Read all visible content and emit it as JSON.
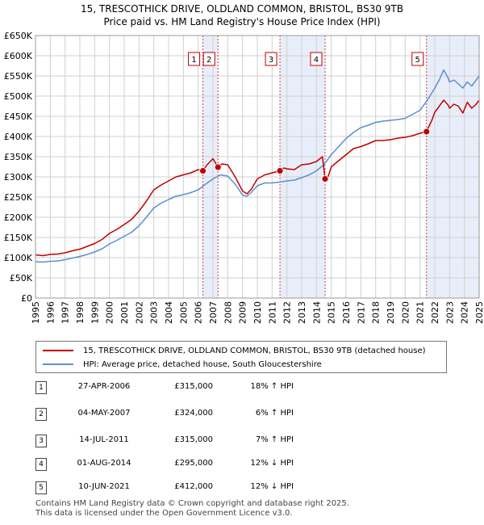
{
  "title_line1": "15, TRESCOTHICK DRIVE, OLDLAND COMMON, BRISTOL, BS30 9TB",
  "title_line2": "Price paid vs. HM Land Registry's House Price Index (HPI)",
  "colors": {
    "property": "#c00000",
    "hpi": "#5b8fd0",
    "shade": "#e8eef9",
    "grid": "#d0d0d0"
  },
  "chart_data": {
    "type": "line",
    "xlim": [
      1995,
      2025
    ],
    "ylim": [
      0,
      650000
    ],
    "yticks": [
      {
        "v": 0,
        "label": "£0"
      },
      {
        "v": 50000,
        "label": "£50K"
      },
      {
        "v": 100000,
        "label": "£100K"
      },
      {
        "v": 150000,
        "label": "£150K"
      },
      {
        "v": 200000,
        "label": "£200K"
      },
      {
        "v": 250000,
        "label": "£250K"
      },
      {
        "v": 300000,
        "label": "£300K"
      },
      {
        "v": 350000,
        "label": "£350K"
      },
      {
        "v": 400000,
        "label": "£400K"
      },
      {
        "v": 450000,
        "label": "£450K"
      },
      {
        "v": 500000,
        "label": "£500K"
      },
      {
        "v": 550000,
        "label": "£550K"
      },
      {
        "v": 600000,
        "label": "£600K"
      },
      {
        "v": 650000,
        "label": "£650K"
      }
    ],
    "xticks": [
      "1995",
      "1996",
      "1997",
      "1998",
      "1999",
      "2000",
      "2001",
      "2002",
      "2003",
      "2004",
      "2005",
      "2006",
      "2007",
      "2008",
      "2009",
      "2010",
      "2011",
      "2012",
      "2013",
      "2014",
      "2015",
      "2016",
      "2017",
      "2018",
      "2019",
      "2020",
      "2021",
      "2022",
      "2023",
      "2024",
      "2025"
    ],
    "shaded_periods": [
      [
        2006.32,
        2007.34
      ],
      [
        2011.53,
        2014.58
      ],
      [
        2021.44,
        2025.0
      ]
    ],
    "series": [
      {
        "name": "15, TRESCOTHICK DRIVE, OLDLAND COMMON, BRISTOL, BS30 9TB (detached house)",
        "x": [
          1995.0,
          1995.5,
          1996.0,
          1996.5,
          1997.0,
          1997.5,
          1998.0,
          1998.5,
          1999.0,
          1999.5,
          2000.0,
          2000.5,
          2001.0,
          2001.5,
          2002.0,
          2002.5,
          2003.0,
          2003.5,
          2004.0,
          2004.5,
          2005.0,
          2005.5,
          2006.0,
          2006.32,
          2006.6,
          2007.0,
          2007.34,
          2007.6,
          2008.0,
          2008.5,
          2009.0,
          2009.3,
          2009.6,
          2010.0,
          2010.5,
          2011.0,
          2011.53,
          2011.8,
          2012.0,
          2012.5,
          2013.0,
          2013.5,
          2014.0,
          2014.4,
          2014.58,
          2014.8,
          2015.0,
          2015.5,
          2016.0,
          2016.5,
          2017.0,
          2017.5,
          2018.0,
          2018.5,
          2019.0,
          2019.5,
          2020.0,
          2020.5,
          2021.0,
          2021.44,
          2021.8,
          2022.0,
          2022.3,
          2022.6,
          2022.9,
          2023.0,
          2023.3,
          2023.6,
          2023.9,
          2024.2,
          2024.5,
          2024.8,
          2025.0
        ],
        "y": [
          107000,
          105000,
          108000,
          109000,
          112000,
          117000,
          121000,
          128000,
          135000,
          145000,
          160000,
          170000,
          182000,
          195000,
          215000,
          240000,
          268000,
          280000,
          290000,
          300000,
          305000,
          310000,
          318000,
          315000,
          330000,
          345000,
          324000,
          332000,
          330000,
          300000,
          265000,
          258000,
          270000,
          295000,
          305000,
          310000,
          315000,
          322000,
          320000,
          318000,
          330000,
          332000,
          338000,
          350000,
          295000,
          302000,
          325000,
          340000,
          355000,
          370000,
          375000,
          382000,
          390000,
          390000,
          392000,
          396000,
          398000,
          402000,
          408000,
          412000,
          440000,
          460000,
          475000,
          490000,
          478000,
          470000,
          480000,
          475000,
          458000,
          485000,
          470000,
          480000,
          490000
        ]
      },
      {
        "name": "HPI: Average price, detached house, South Gloucestershire",
        "x": [
          1995.0,
          1995.5,
          1996.0,
          1996.5,
          1997.0,
          1997.5,
          1998.0,
          1998.5,
          1999.0,
          1999.5,
          2000.0,
          2000.5,
          2001.0,
          2001.5,
          2002.0,
          2002.5,
          2003.0,
          2003.5,
          2004.0,
          2004.5,
          2005.0,
          2005.5,
          2006.0,
          2006.5,
          2007.0,
          2007.5,
          2008.0,
          2008.5,
          2009.0,
          2009.3,
          2009.6,
          2010.0,
          2010.5,
          2011.0,
          2011.5,
          2012.0,
          2012.5,
          2013.0,
          2013.5,
          2014.0,
          2014.5,
          2015.0,
          2015.5,
          2016.0,
          2016.5,
          2017.0,
          2017.5,
          2018.0,
          2018.5,
          2019.0,
          2019.5,
          2020.0,
          2020.5,
          2021.0,
          2021.5,
          2022.0,
          2022.3,
          2022.6,
          2022.9,
          2023.0,
          2023.3,
          2023.6,
          2023.9,
          2024.2,
          2024.5,
          2024.8,
          2025.0
        ],
        "y": [
          90000,
          89000,
          91000,
          92000,
          95000,
          99000,
          103000,
          108000,
          114000,
          122000,
          134000,
          143000,
          153000,
          163000,
          179000,
          200000,
          223000,
          235000,
          244000,
          252000,
          256000,
          261000,
          268000,
          282000,
          295000,
          305000,
          302000,
          282000,
          255000,
          252000,
          262000,
          278000,
          285000,
          285000,
          287000,
          290000,
          292000,
          298000,
          305000,
          315000,
          330000,
          355000,
          375000,
          395000,
          410000,
          422000,
          428000,
          435000,
          438000,
          440000,
          442000,
          445000,
          455000,
          465000,
          490000,
          520000,
          540000,
          565000,
          545000,
          535000,
          540000,
          530000,
          520000,
          535000,
          525000,
          540000,
          550000
        ]
      }
    ],
    "transactions": [
      {
        "num": "1",
        "x": 2006.32,
        "y": 315000,
        "date": "27-APR-2006",
        "price": "£315,000",
        "hpi": "18% ↑ HPI"
      },
      {
        "num": "2",
        "x": 2007.34,
        "y": 324000,
        "date": "04-MAY-2007",
        "price": "£324,000",
        "hpi": "6% ↑ HPI"
      },
      {
        "num": "3",
        "x": 2011.53,
        "y": 315000,
        "date": "14-JUL-2011",
        "price": "£315,000",
        "hpi": "7% ↑ HPI"
      },
      {
        "num": "4",
        "x": 2014.58,
        "y": 295000,
        "date": "01-AUG-2014",
        "price": "£295,000",
        "hpi": "12% ↓ HPI"
      },
      {
        "num": "5",
        "x": 2021.44,
        "y": 412000,
        "date": "10-JUN-2021",
        "price": "£412,000",
        "hpi": "12% ↓ HPI"
      }
    ]
  },
  "legend": {
    "property_label": "15, TRESCOTHICK DRIVE, OLDLAND COMMON, BRISTOL, BS30 9TB (detached house)",
    "hpi_label": "HPI: Average price, detached house, South Gloucestershire"
  },
  "footer_line1": "Contains HM Land Registry data © Crown copyright and database right 2025.",
  "footer_line2": "This data is licensed under the Open Government Licence v3.0."
}
